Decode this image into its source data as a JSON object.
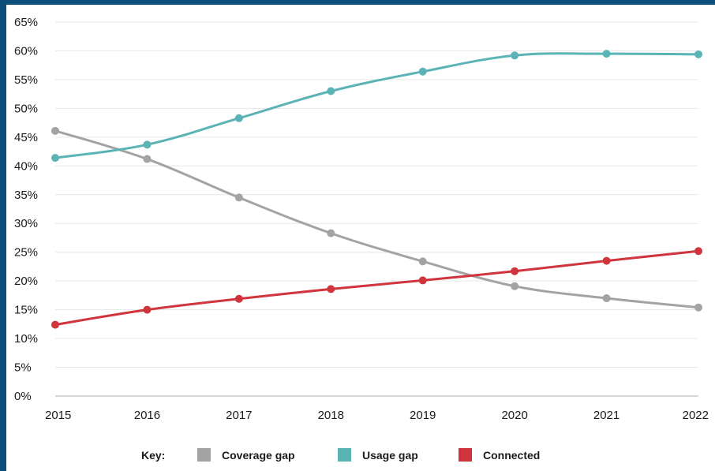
{
  "chart_data": {
    "type": "line",
    "x": [
      "2015",
      "2016",
      "2017",
      "2018",
      "2019",
      "2020",
      "2021",
      "2022"
    ],
    "y_ticks": [
      "0%",
      "5%",
      "10%",
      "15%",
      "20%",
      "25%",
      "30%",
      "35%",
      "40%",
      "45%",
      "50%",
      "55%",
      "60%",
      "65%"
    ],
    "ylim": [
      0,
      65
    ],
    "grid": true,
    "legend_placement": "bottom",
    "series": [
      {
        "name": "Coverage gap",
        "color": "#a3a3a3",
        "values": [
          46.1,
          41.2,
          34.5,
          28.3,
          23.4,
          19.1,
          17.0,
          15.4
        ]
      },
      {
        "name": "Usage gap",
        "color": "#5bb3b6",
        "values": [
          41.4,
          43.7,
          48.3,
          53.0,
          56.4,
          59.2,
          59.5,
          59.4
        ]
      },
      {
        "name": "Connected",
        "color": "#d0343c",
        "values": [
          12.4,
          15.0,
          16.9,
          18.6,
          20.1,
          21.7,
          23.5,
          25.2
        ]
      }
    ]
  },
  "legend": {
    "key_label": "Key:"
  }
}
